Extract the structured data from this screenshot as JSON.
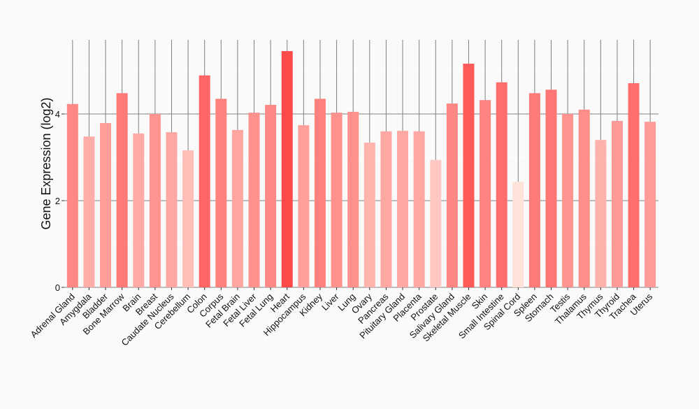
{
  "chart_data": {
    "type": "bar",
    "title": "",
    "xlabel": "",
    "ylabel": "Gene Expression (log2)",
    "ylim": [
      0,
      5.7
    ],
    "yticks": [
      0,
      2,
      4
    ],
    "grid": true,
    "categories": [
      "Adrenal Gland",
      "Amygdala",
      "Bladder",
      "Bone Marrow",
      "Brain",
      "Breast",
      "Caudate Nucleus",
      "Cerebellum",
      "Colon",
      "Corpus",
      "Fetal Brain",
      "Fetal Liver",
      "Fetal Lung",
      "Heart",
      "Hippocampus",
      "Kidney",
      "Liver",
      "Lung",
      "Ovary",
      "Pancreas",
      "Pituitary Gland",
      "Placenta",
      "Prostate",
      "Salivary Gland",
      "Skeletal Muscle",
      "Skin",
      "Small Intestine",
      "Spinal Cord",
      "Spleen",
      "Stomach",
      "Testis",
      "Thalamus",
      "Thymus",
      "Thyroid",
      "Trachea",
      "Uterus"
    ],
    "values": [
      4.23,
      3.48,
      3.79,
      4.48,
      3.55,
      4.0,
      3.58,
      3.16,
      4.89,
      4.35,
      3.63,
      4.03,
      4.21,
      5.45,
      3.74,
      4.35,
      4.03,
      4.05,
      3.34,
      3.6,
      3.61,
      3.6,
      2.94,
      4.24,
      5.16,
      4.32,
      4.73,
      2.44,
      4.48,
      4.56,
      4.0,
      4.1,
      3.4,
      3.84,
      4.71,
      3.82
    ],
    "color_low": "#ffe2d9",
    "color_high": "#ff4a4a",
    "grid_color": "#808080"
  }
}
